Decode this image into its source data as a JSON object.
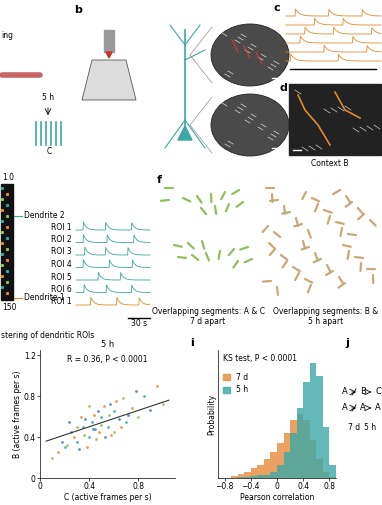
{
  "chart_data": [
    {
      "type": "scatter",
      "title": "5 h",
      "annotation": "R = 0.36, P < 0.0001",
      "x_label": "C (active frames per s)",
      "y_label": "B (active frames per s)",
      "xlim": [
        0,
        1.1
      ],
      "ylim": [
        0,
        1.25
      ],
      "xticks": [
        0,
        0.4,
        0.8
      ],
      "yticks": [
        0,
        0.4,
        0.8,
        1.2
      ],
      "series": [
        {
          "color": "#3aa6a0",
          "x": [
            0.2,
            0.25,
            0.3,
            0.35,
            0.4,
            0.42,
            0.45,
            0.5,
            0.55,
            0.6,
            0.7,
            0.85
          ],
          "values": [
            0.3,
            0.45,
            0.35,
            0.5,
            0.4,
            0.55,
            0.48,
            0.6,
            0.5,
            0.65,
            0.55,
            0.8
          ]
        },
        {
          "color": "#e58a3a",
          "x": [
            0.15,
            0.28,
            0.33,
            0.38,
            0.44,
            0.48,
            0.52,
            0.58,
            0.62,
            0.66,
            0.75,
            0.95
          ],
          "values": [
            0.25,
            0.4,
            0.6,
            0.3,
            0.62,
            0.45,
            0.7,
            0.42,
            0.75,
            0.5,
            0.68,
            0.9
          ]
        },
        {
          "color": "#8dbf5a",
          "x": [
            0.1,
            0.22,
            0.3,
            0.36,
            0.4,
            0.46,
            0.5,
            0.56,
            0.6,
            0.68,
            0.8,
            1.0
          ],
          "values": [
            0.2,
            0.32,
            0.5,
            0.42,
            0.7,
            0.38,
            0.52,
            0.62,
            0.45,
            0.78,
            0.6,
            0.72
          ]
        },
        {
          "color": "#4a78c2",
          "x": [
            0.18,
            0.24,
            0.32,
            0.37,
            0.43,
            0.47,
            0.53,
            0.57,
            0.64,
            0.72,
            0.78,
            0.9
          ],
          "values": [
            0.35,
            0.55,
            0.28,
            0.58,
            0.48,
            0.65,
            0.4,
            0.72,
            0.58,
            0.62,
            0.85,
            0.66
          ]
        }
      ],
      "fit": {
        "x": [
          0.05,
          1.05
        ],
        "values": [
          0.36,
          0.76
        ],
        "color": "#333333"
      }
    },
    {
      "type": "histogram",
      "annotation": "KS test, P < 0.0001",
      "x_label": "Pearson correlation",
      "y_label": "Probability",
      "xlim": [
        -0.9,
        0.9
      ],
      "ylim": [
        0,
        0.2
      ],
      "xticks": [
        {
          "value": -0.8,
          "label": "−0.8"
        },
        {
          "value": -0.4,
          "label": "−0.4"
        },
        0,
        0.4,
        0.8
      ],
      "tick_labels": "x",
      "legend": "upper left",
      "bins": [
        -0.7,
        -0.6,
        -0.5,
        -0.4,
        -0.3,
        -0.2,
        -0.1,
        0,
        0.1,
        0.2,
        0.3,
        0.4,
        0.5,
        0.6,
        0.7,
        0.8,
        0.9
      ],
      "series": [
        {
          "name": "7 d",
          "color": "#e58a3a",
          "values": [
            0.003,
            0.006,
            0.01,
            0.015,
            0.02,
            0.03,
            0.04,
            0.055,
            0.07,
            0.09,
            0.1,
            0.09,
            0.06,
            0.03,
            0.01,
            0.002
          ]
        },
        {
          "name": "5 h",
          "color": "#3ba8a6",
          "values": [
            0,
            0.001,
            0.002,
            0.003,
            0.004,
            0.005,
            0.01,
            0.02,
            0.04,
            0.07,
            0.11,
            0.15,
            0.18,
            0.16,
            0.08,
            0.02
          ]
        }
      ]
    }
  ],
  "diagram": {
    "panel_letters": [
      "b",
      "c",
      "d",
      "f",
      "i",
      "j"
    ],
    "a": {
      "partial_label": "ing",
      "interval": "5 h",
      "context": "C"
    },
    "c": {
      "color": "#e08a2c",
      "traces": [
        [
          0.1,
          0.45,
          0.8
        ],
        [
          0.3,
          0.6
        ],
        [
          0.2,
          0.5,
          0.9
        ],
        [
          0.15,
          0.7
        ],
        [
          0.4,
          0.85
        ],
        [
          0.05,
          0.55
        ]
      ]
    },
    "d": {
      "label": "Context B"
    },
    "e": {
      "colorbar_top": "1.0",
      "colorbar_bottom": "150",
      "dendrites": [
        "Dendrite 2",
        "Dendrite 1"
      ],
      "rois": [
        {
          "label": "ROI 1",
          "color": "#3aa6a0",
          "events": [
            0.1,
            0.4,
            0.75
          ]
        },
        {
          "label": "ROI 2",
          "color": "#3aa6a0",
          "events": [
            0.1,
            0.42,
            0.78
          ]
        },
        {
          "label": "ROI 3",
          "color": "#3aa6a0",
          "events": [
            0.12,
            0.4,
            0.7
          ]
        },
        {
          "label": "ROI 4",
          "color": "#3aa6a0",
          "events": [
            0.1,
            0.45,
            0.76
          ]
        },
        {
          "label": "ROI 5",
          "color": "#3aa6a0",
          "events": [
            0.3,
            0.6
          ]
        },
        {
          "label": "ROI 6",
          "color": "#3aa6a0",
          "events": [
            0.11,
            0.41,
            0.75
          ]
        },
        {
          "label": "ROI 1",
          "color": "#e08a2c",
          "events": [
            0.2,
            0.55,
            0.85
          ]
        }
      ],
      "scale_bar": "30 s",
      "caption": "stering of dendritic ROIs"
    },
    "f": {
      "panels": [
        {
          "lines": [
            "Overlapping segments: A & C",
            "7 d apart"
          ],
          "color": "#8dbf5a"
        },
        {
          "lines": [
            "Overlapping segments: B &",
            "5 h apart"
          ],
          "color": "#c8a878"
        }
      ]
    },
    "j": {
      "rows": [
        [
          "A",
          "B",
          "C"
        ],
        [
          "A",
          "A",
          "A"
        ]
      ],
      "intervals": [
        "7 d",
        "5 h"
      ]
    }
  }
}
